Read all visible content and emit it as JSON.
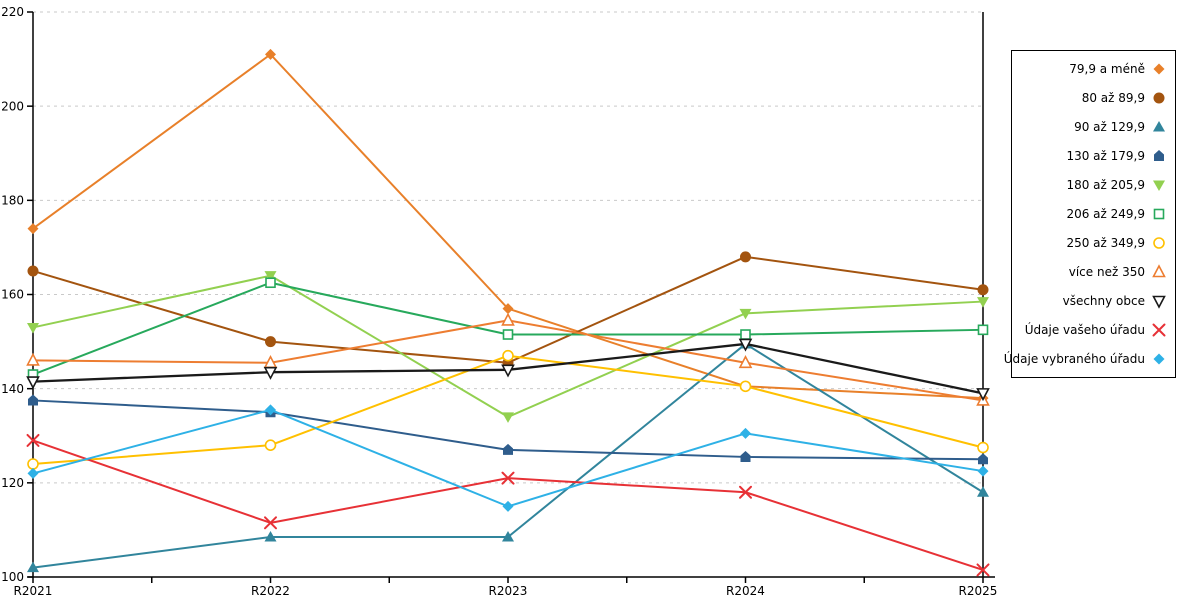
{
  "chart_data": {
    "type": "line",
    "title": "",
    "xlabel": "",
    "ylabel": "",
    "x_labels": [
      "R2021",
      "R2022",
      "R2023",
      "R2024",
      "R2025"
    ],
    "y_ticks": [
      "100",
      "120",
      "140",
      "160",
      "180",
      "200",
      "220"
    ],
    "ylim": [
      100,
      220
    ],
    "grid": "horizontal-dashed",
    "grid_color": "#c9c9c9",
    "axis_color": "#000000",
    "legend_position": "right-box",
    "series": [
      {
        "name": "79,9 a méně",
        "color": "#E8802A",
        "marker": "diamond-filled",
        "values": [
          174,
          211,
          157,
          140.5,
          138
        ]
      },
      {
        "name": "80 až 89,9",
        "color": "#A3540F",
        "marker": "circle-filled",
        "values": [
          165,
          150,
          145.5,
          168,
          161
        ]
      },
      {
        "name": "90 až 129,9",
        "color": "#31859C",
        "marker": "triangle-up-filled",
        "values": [
          102,
          108.5,
          108.5,
          149.5,
          118
        ]
      },
      {
        "name": "130 až 179,9",
        "color": "#2F5D8C",
        "marker": "pentagon-filled",
        "values": [
          137.5,
          135,
          127,
          125.5,
          125
        ]
      },
      {
        "name": "180 až 205,9",
        "color": "#92D050",
        "marker": "triangle-down-filled",
        "values": [
          153,
          164,
          134,
          156,
          158.5
        ]
      },
      {
        "name": "206 až 249,9",
        "color": "#27A95C",
        "marker": "square-open",
        "values": [
          143,
          162.5,
          151.5,
          151.5,
          152.5
        ]
      },
      {
        "name": "250 až 349,9",
        "color": "#FFC000",
        "marker": "circle-open",
        "values": [
          124,
          128,
          147,
          140.5,
          127.5
        ]
      },
      {
        "name": "více než 350",
        "color": "#ED7D31",
        "marker": "triangle-up-open",
        "values": [
          146,
          145.5,
          154.5,
          145.5,
          137.5
        ]
      },
      {
        "name": "všechny obce",
        "color": "#1A1A1A",
        "marker": "triangle-down-open",
        "values": [
          141.5,
          143.5,
          144,
          149.5,
          139
        ]
      },
      {
        "name": "Údaje vašeho úřadu",
        "color": "#E73136",
        "marker": "x",
        "values": [
          129,
          111.5,
          121,
          118,
          101.5
        ]
      },
      {
        "name": "Údaje vybraného úřadu",
        "color": "#2EB1E6",
        "marker": "diamond-filled",
        "values": [
          122,
          135.5,
          115,
          130.5,
          122.5
        ]
      }
    ]
  }
}
